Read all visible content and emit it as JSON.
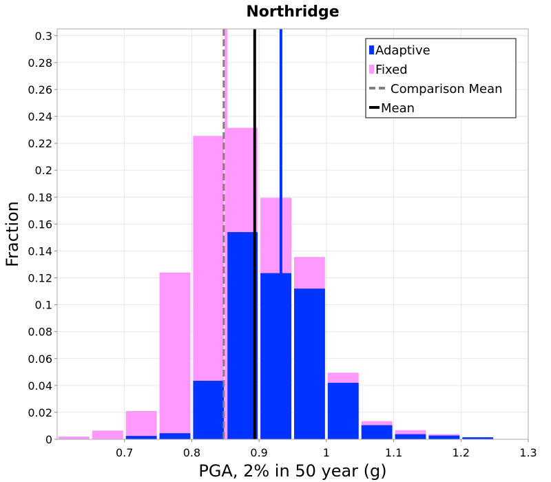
{
  "chart_data": {
    "type": "bar",
    "title": "Northridge",
    "xlabel": "PGA, 2% in 50 year (g)",
    "ylabel": "Fraction",
    "xlim": [
      0.6,
      1.3
    ],
    "ylim": [
      0,
      0.305
    ],
    "x_ticks": [
      "0.7",
      "0.8",
      "0.9",
      "1",
      "1.1",
      "1.2",
      "1.3"
    ],
    "y_ticks": [
      "0",
      "0.02",
      "0.04",
      "0.06",
      "0.08",
      "0.1",
      "0.12",
      "0.14",
      "0.16",
      "0.18",
      "0.2",
      "0.22",
      "0.24",
      "0.26",
      "0.28",
      "0.3"
    ],
    "grid": true,
    "legend_position": "top-right",
    "bin_width": 0.05,
    "bin_centers": [
      0.625,
      0.675,
      0.725,
      0.775,
      0.825,
      0.875,
      0.925,
      0.975,
      1.025,
      1.075,
      1.125,
      1.175,
      1.225
    ],
    "series": [
      {
        "name": "Fixed",
        "color": "#ff99ff",
        "values": [
          0.002,
          0.0065,
          0.021,
          0.124,
          0.2255,
          0.2315,
          0.1795,
          0.1355,
          0.0495,
          0.0135,
          0.0068,
          0.0038,
          0.0
        ]
      },
      {
        "name": "Adaptive",
        "color": "#0033ff",
        "values": [
          0.0,
          0.0,
          0.0025,
          0.0045,
          0.0435,
          0.154,
          0.1235,
          0.112,
          0.042,
          0.0105,
          0.0038,
          0.0028,
          0.0015
        ]
      }
    ],
    "vertical_lines": [
      {
        "name": "Comparison Mean",
        "x": 0.848,
        "color": "#808080",
        "dashed": true
      },
      {
        "name": "Fixed Mean",
        "x": 0.851,
        "color": "#ff99ff",
        "dashed": false
      },
      {
        "name": "Mean",
        "x": 0.8935,
        "color": "#000000",
        "dashed": false
      },
      {
        "name": "Adaptive Mean",
        "x": 0.9325,
        "color": "#0033ff",
        "dashed": false
      }
    ],
    "legend": [
      {
        "label": "Adaptive",
        "kind": "bar",
        "color": "#0033ff"
      },
      {
        "label": "Fixed",
        "kind": "bar",
        "color": "#ff99ff"
      },
      {
        "label": "Comparison Mean",
        "kind": "dashed",
        "color": "#808080"
      },
      {
        "label": "Mean",
        "kind": "solid",
        "color": "#000000"
      }
    ]
  }
}
